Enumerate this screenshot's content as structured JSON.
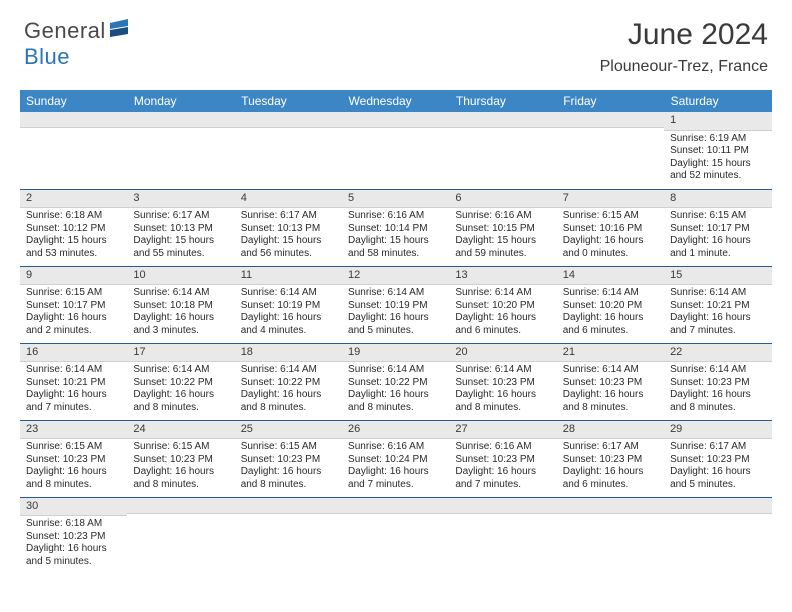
{
  "brand": {
    "part1": "General",
    "part2": "Blue"
  },
  "title": "June 2024",
  "location": "Plouneour-Trez, France",
  "colors": {
    "header_bg": "#3d86c6",
    "header_text": "#ffffff",
    "daynum_bg": "#e9e9e9",
    "row_border": "#2a5b8f",
    "brand_blue": "#2a74b8",
    "text": "#2a2a2a"
  },
  "day_headers": [
    "Sunday",
    "Monday",
    "Tuesday",
    "Wednesday",
    "Thursday",
    "Friday",
    "Saturday"
  ],
  "weeks": [
    [
      {
        "n": "",
        "sr": "",
        "ss": "",
        "d1": "",
        "d2": ""
      },
      {
        "n": "",
        "sr": "",
        "ss": "",
        "d1": "",
        "d2": ""
      },
      {
        "n": "",
        "sr": "",
        "ss": "",
        "d1": "",
        "d2": ""
      },
      {
        "n": "",
        "sr": "",
        "ss": "",
        "d1": "",
        "d2": ""
      },
      {
        "n": "",
        "sr": "",
        "ss": "",
        "d1": "",
        "d2": ""
      },
      {
        "n": "",
        "sr": "",
        "ss": "",
        "d1": "",
        "d2": ""
      },
      {
        "n": "1",
        "sr": "Sunrise: 6:19 AM",
        "ss": "Sunset: 10:11 PM",
        "d1": "Daylight: 15 hours",
        "d2": "and 52 minutes."
      }
    ],
    [
      {
        "n": "2",
        "sr": "Sunrise: 6:18 AM",
        "ss": "Sunset: 10:12 PM",
        "d1": "Daylight: 15 hours",
        "d2": "and 53 minutes."
      },
      {
        "n": "3",
        "sr": "Sunrise: 6:17 AM",
        "ss": "Sunset: 10:13 PM",
        "d1": "Daylight: 15 hours",
        "d2": "and 55 minutes."
      },
      {
        "n": "4",
        "sr": "Sunrise: 6:17 AM",
        "ss": "Sunset: 10:13 PM",
        "d1": "Daylight: 15 hours",
        "d2": "and 56 minutes."
      },
      {
        "n": "5",
        "sr": "Sunrise: 6:16 AM",
        "ss": "Sunset: 10:14 PM",
        "d1": "Daylight: 15 hours",
        "d2": "and 58 minutes."
      },
      {
        "n": "6",
        "sr": "Sunrise: 6:16 AM",
        "ss": "Sunset: 10:15 PM",
        "d1": "Daylight: 15 hours",
        "d2": "and 59 minutes."
      },
      {
        "n": "7",
        "sr": "Sunrise: 6:15 AM",
        "ss": "Sunset: 10:16 PM",
        "d1": "Daylight: 16 hours",
        "d2": "and 0 minutes."
      },
      {
        "n": "8",
        "sr": "Sunrise: 6:15 AM",
        "ss": "Sunset: 10:17 PM",
        "d1": "Daylight: 16 hours",
        "d2": "and 1 minute."
      }
    ],
    [
      {
        "n": "9",
        "sr": "Sunrise: 6:15 AM",
        "ss": "Sunset: 10:17 PM",
        "d1": "Daylight: 16 hours",
        "d2": "and 2 minutes."
      },
      {
        "n": "10",
        "sr": "Sunrise: 6:14 AM",
        "ss": "Sunset: 10:18 PM",
        "d1": "Daylight: 16 hours",
        "d2": "and 3 minutes."
      },
      {
        "n": "11",
        "sr": "Sunrise: 6:14 AM",
        "ss": "Sunset: 10:19 PM",
        "d1": "Daylight: 16 hours",
        "d2": "and 4 minutes."
      },
      {
        "n": "12",
        "sr": "Sunrise: 6:14 AM",
        "ss": "Sunset: 10:19 PM",
        "d1": "Daylight: 16 hours",
        "d2": "and 5 minutes."
      },
      {
        "n": "13",
        "sr": "Sunrise: 6:14 AM",
        "ss": "Sunset: 10:20 PM",
        "d1": "Daylight: 16 hours",
        "d2": "and 6 minutes."
      },
      {
        "n": "14",
        "sr": "Sunrise: 6:14 AM",
        "ss": "Sunset: 10:20 PM",
        "d1": "Daylight: 16 hours",
        "d2": "and 6 minutes."
      },
      {
        "n": "15",
        "sr": "Sunrise: 6:14 AM",
        "ss": "Sunset: 10:21 PM",
        "d1": "Daylight: 16 hours",
        "d2": "and 7 minutes."
      }
    ],
    [
      {
        "n": "16",
        "sr": "Sunrise: 6:14 AM",
        "ss": "Sunset: 10:21 PM",
        "d1": "Daylight: 16 hours",
        "d2": "and 7 minutes."
      },
      {
        "n": "17",
        "sr": "Sunrise: 6:14 AM",
        "ss": "Sunset: 10:22 PM",
        "d1": "Daylight: 16 hours",
        "d2": "and 8 minutes."
      },
      {
        "n": "18",
        "sr": "Sunrise: 6:14 AM",
        "ss": "Sunset: 10:22 PM",
        "d1": "Daylight: 16 hours",
        "d2": "and 8 minutes."
      },
      {
        "n": "19",
        "sr": "Sunrise: 6:14 AM",
        "ss": "Sunset: 10:22 PM",
        "d1": "Daylight: 16 hours",
        "d2": "and 8 minutes."
      },
      {
        "n": "20",
        "sr": "Sunrise: 6:14 AM",
        "ss": "Sunset: 10:23 PM",
        "d1": "Daylight: 16 hours",
        "d2": "and 8 minutes."
      },
      {
        "n": "21",
        "sr": "Sunrise: 6:14 AM",
        "ss": "Sunset: 10:23 PM",
        "d1": "Daylight: 16 hours",
        "d2": "and 8 minutes."
      },
      {
        "n": "22",
        "sr": "Sunrise: 6:14 AM",
        "ss": "Sunset: 10:23 PM",
        "d1": "Daylight: 16 hours",
        "d2": "and 8 minutes."
      }
    ],
    [
      {
        "n": "23",
        "sr": "Sunrise: 6:15 AM",
        "ss": "Sunset: 10:23 PM",
        "d1": "Daylight: 16 hours",
        "d2": "and 8 minutes."
      },
      {
        "n": "24",
        "sr": "Sunrise: 6:15 AM",
        "ss": "Sunset: 10:23 PM",
        "d1": "Daylight: 16 hours",
        "d2": "and 8 minutes."
      },
      {
        "n": "25",
        "sr": "Sunrise: 6:15 AM",
        "ss": "Sunset: 10:23 PM",
        "d1": "Daylight: 16 hours",
        "d2": "and 8 minutes."
      },
      {
        "n": "26",
        "sr": "Sunrise: 6:16 AM",
        "ss": "Sunset: 10:24 PM",
        "d1": "Daylight: 16 hours",
        "d2": "and 7 minutes."
      },
      {
        "n": "27",
        "sr": "Sunrise: 6:16 AM",
        "ss": "Sunset: 10:23 PM",
        "d1": "Daylight: 16 hours",
        "d2": "and 7 minutes."
      },
      {
        "n": "28",
        "sr": "Sunrise: 6:17 AM",
        "ss": "Sunset: 10:23 PM",
        "d1": "Daylight: 16 hours",
        "d2": "and 6 minutes."
      },
      {
        "n": "29",
        "sr": "Sunrise: 6:17 AM",
        "ss": "Sunset: 10:23 PM",
        "d1": "Daylight: 16 hours",
        "d2": "and 5 minutes."
      }
    ],
    [
      {
        "n": "30",
        "sr": "Sunrise: 6:18 AM",
        "ss": "Sunset: 10:23 PM",
        "d1": "Daylight: 16 hours",
        "d2": "and 5 minutes."
      },
      {
        "n": "",
        "sr": "",
        "ss": "",
        "d1": "",
        "d2": ""
      },
      {
        "n": "",
        "sr": "",
        "ss": "",
        "d1": "",
        "d2": ""
      },
      {
        "n": "",
        "sr": "",
        "ss": "",
        "d1": "",
        "d2": ""
      },
      {
        "n": "",
        "sr": "",
        "ss": "",
        "d1": "",
        "d2": ""
      },
      {
        "n": "",
        "sr": "",
        "ss": "",
        "d1": "",
        "d2": ""
      },
      {
        "n": "",
        "sr": "",
        "ss": "",
        "d1": "",
        "d2": ""
      }
    ]
  ]
}
